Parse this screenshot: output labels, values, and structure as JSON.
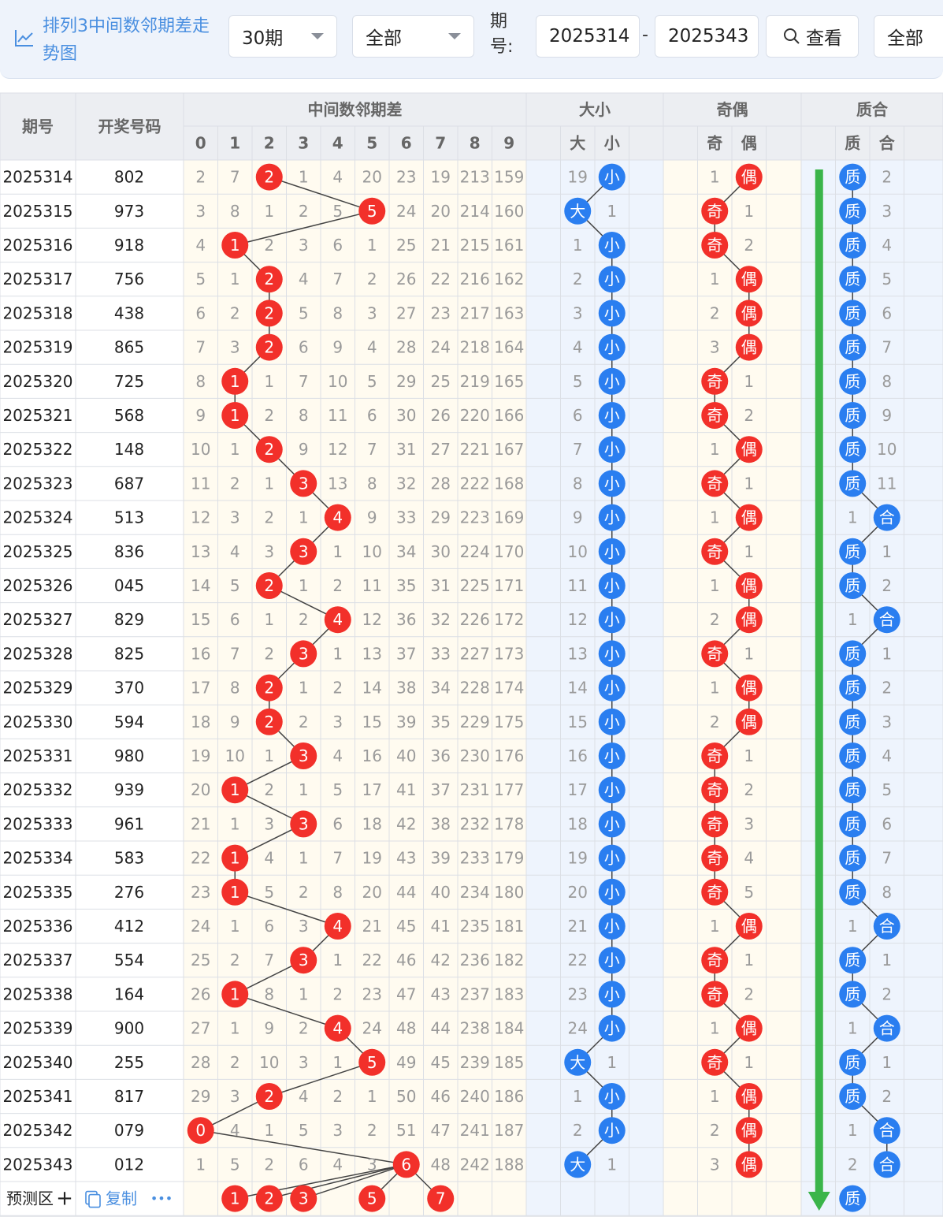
{
  "header": {
    "title": "排列3中间数邻期差走势图",
    "period_select": "30期",
    "filter_select": "全部",
    "issue_label": "期号:",
    "start_issue": "2025314",
    "separator": "-",
    "end_issue": "2025343",
    "view_button": "查看",
    "right_select": "全部"
  },
  "table": {
    "col_issue": "期号",
    "col_number": "开奖号码",
    "group_diff": "中间数邻期差",
    "group_size": "大小",
    "group_parity": "奇偶",
    "group_prime": "质合",
    "digits": [
      "0",
      "1",
      "2",
      "3",
      "4",
      "5",
      "6",
      "7",
      "8",
      "9"
    ],
    "size_labels": [
      "大",
      "小"
    ],
    "parity_labels": [
      "奇",
      "偶"
    ],
    "prime_labels": [
      "质",
      "合"
    ],
    "rows": [
      {
        "issue": "2025314",
        "number": "802",
        "diff": [
          2,
          7,
          "2",
          1,
          4,
          20,
          23,
          19,
          213,
          159
        ],
        "size": [
          19,
          "小"
        ],
        "parity": [
          1,
          "偶"
        ],
        "prime": [
          "质",
          2
        ]
      },
      {
        "issue": "2025315",
        "number": "973",
        "diff": [
          3,
          8,
          1,
          2,
          5,
          "5",
          24,
          20,
          214,
          160
        ],
        "size": [
          "大",
          1
        ],
        "parity": [
          "奇",
          1
        ],
        "prime": [
          "质",
          3
        ]
      },
      {
        "issue": "2025316",
        "number": "918",
        "diff": [
          4,
          "1",
          2,
          3,
          6,
          1,
          25,
          21,
          215,
          161
        ],
        "size": [
          1,
          "小"
        ],
        "parity": [
          "奇",
          2
        ],
        "prime": [
          "质",
          4
        ]
      },
      {
        "issue": "2025317",
        "number": "756",
        "diff": [
          5,
          1,
          "2",
          4,
          7,
          2,
          26,
          22,
          216,
          162
        ],
        "size": [
          2,
          "小"
        ],
        "parity": [
          1,
          "偶"
        ],
        "prime": [
          "质",
          5
        ]
      },
      {
        "issue": "2025318",
        "number": "438",
        "diff": [
          6,
          2,
          "2",
          5,
          8,
          3,
          27,
          23,
          217,
          163
        ],
        "size": [
          3,
          "小"
        ],
        "parity": [
          2,
          "偶"
        ],
        "prime": [
          "质",
          6
        ]
      },
      {
        "issue": "2025319",
        "number": "865",
        "diff": [
          7,
          3,
          "2",
          6,
          9,
          4,
          28,
          24,
          218,
          164
        ],
        "size": [
          4,
          "小"
        ],
        "parity": [
          3,
          "偶"
        ],
        "prime": [
          "质",
          7
        ]
      },
      {
        "issue": "2025320",
        "number": "725",
        "diff": [
          8,
          "1",
          1,
          7,
          10,
          5,
          29,
          25,
          219,
          165
        ],
        "size": [
          5,
          "小"
        ],
        "parity": [
          "奇",
          1
        ],
        "prime": [
          "质",
          8
        ]
      },
      {
        "issue": "2025321",
        "number": "568",
        "diff": [
          9,
          "1",
          2,
          8,
          11,
          6,
          30,
          26,
          220,
          166
        ],
        "size": [
          6,
          "小"
        ],
        "parity": [
          "奇",
          2
        ],
        "prime": [
          "质",
          9
        ]
      },
      {
        "issue": "2025322",
        "number": "148",
        "diff": [
          10,
          1,
          "2",
          9,
          12,
          7,
          31,
          27,
          221,
          167
        ],
        "size": [
          7,
          "小"
        ],
        "parity": [
          1,
          "偶"
        ],
        "prime": [
          "质",
          10
        ]
      },
      {
        "issue": "2025323",
        "number": "687",
        "diff": [
          11,
          2,
          1,
          "3",
          13,
          8,
          32,
          28,
          222,
          168
        ],
        "size": [
          8,
          "小"
        ],
        "parity": [
          "奇",
          1
        ],
        "prime": [
          "质",
          11
        ]
      },
      {
        "issue": "2025324",
        "number": "513",
        "diff": [
          12,
          3,
          2,
          1,
          "4",
          9,
          33,
          29,
          223,
          169
        ],
        "size": [
          9,
          "小"
        ],
        "parity": [
          1,
          "偶"
        ],
        "prime": [
          1,
          "合"
        ]
      },
      {
        "issue": "2025325",
        "number": "836",
        "diff": [
          13,
          4,
          3,
          "3",
          1,
          10,
          34,
          30,
          224,
          170
        ],
        "size": [
          10,
          "小"
        ],
        "parity": [
          "奇",
          1
        ],
        "prime": [
          "质",
          1
        ]
      },
      {
        "issue": "2025326",
        "number": "045",
        "diff": [
          14,
          5,
          "2",
          1,
          2,
          11,
          35,
          31,
          225,
          171
        ],
        "size": [
          11,
          "小"
        ],
        "parity": [
          1,
          "偶"
        ],
        "prime": [
          "质",
          2
        ]
      },
      {
        "issue": "2025327",
        "number": "829",
        "diff": [
          15,
          6,
          1,
          2,
          "4",
          12,
          36,
          32,
          226,
          172
        ],
        "size": [
          12,
          "小"
        ],
        "parity": [
          2,
          "偶"
        ],
        "prime": [
          1,
          "合"
        ]
      },
      {
        "issue": "2025328",
        "number": "825",
        "diff": [
          16,
          7,
          2,
          "3",
          1,
          13,
          37,
          33,
          227,
          173
        ],
        "size": [
          13,
          "小"
        ],
        "parity": [
          "奇",
          1
        ],
        "prime": [
          "质",
          1
        ]
      },
      {
        "issue": "2025329",
        "number": "370",
        "diff": [
          17,
          8,
          "2",
          1,
          2,
          14,
          38,
          34,
          228,
          174
        ],
        "size": [
          14,
          "小"
        ],
        "parity": [
          1,
          "偶"
        ],
        "prime": [
          "质",
          2
        ]
      },
      {
        "issue": "2025330",
        "number": "594",
        "diff": [
          18,
          9,
          "2",
          2,
          3,
          15,
          39,
          35,
          229,
          175
        ],
        "size": [
          15,
          "小"
        ],
        "parity": [
          2,
          "偶"
        ],
        "prime": [
          "质",
          3
        ]
      },
      {
        "issue": "2025331",
        "number": "980",
        "diff": [
          19,
          10,
          1,
          "3",
          4,
          16,
          40,
          36,
          230,
          176
        ],
        "size": [
          16,
          "小"
        ],
        "parity": [
          "奇",
          1
        ],
        "prime": [
          "质",
          4
        ]
      },
      {
        "issue": "2025332",
        "number": "939",
        "diff": [
          20,
          "1",
          2,
          1,
          5,
          17,
          41,
          37,
          231,
          177
        ],
        "size": [
          17,
          "小"
        ],
        "parity": [
          "奇",
          2
        ],
        "prime": [
          "质",
          5
        ]
      },
      {
        "issue": "2025333",
        "number": "961",
        "diff": [
          21,
          1,
          3,
          "3",
          6,
          18,
          42,
          38,
          232,
          178
        ],
        "size": [
          18,
          "小"
        ],
        "parity": [
          "奇",
          3
        ],
        "prime": [
          "质",
          6
        ]
      },
      {
        "issue": "2025334",
        "number": "583",
        "diff": [
          22,
          "1",
          4,
          1,
          7,
          19,
          43,
          39,
          233,
          179
        ],
        "size": [
          19,
          "小"
        ],
        "parity": [
          "奇",
          4
        ],
        "prime": [
          "质",
          7
        ]
      },
      {
        "issue": "2025335",
        "number": "276",
        "diff": [
          23,
          "1",
          5,
          2,
          8,
          20,
          44,
          40,
          234,
          180
        ],
        "size": [
          20,
          "小"
        ],
        "parity": [
          "奇",
          5
        ],
        "prime": [
          "质",
          8
        ]
      },
      {
        "issue": "2025336",
        "number": "412",
        "diff": [
          24,
          1,
          6,
          3,
          "4",
          21,
          45,
          41,
          235,
          181
        ],
        "size": [
          21,
          "小"
        ],
        "parity": [
          1,
          "偶"
        ],
        "prime": [
          1,
          "合"
        ]
      },
      {
        "issue": "2025337",
        "number": "554",
        "diff": [
          25,
          2,
          7,
          "3",
          1,
          22,
          46,
          42,
          236,
          182
        ],
        "size": [
          22,
          "小"
        ],
        "parity": [
          "奇",
          1
        ],
        "prime": [
          "质",
          1
        ]
      },
      {
        "issue": "2025338",
        "number": "164",
        "diff": [
          26,
          "1",
          8,
          1,
          2,
          23,
          47,
          43,
          237,
          183
        ],
        "size": [
          23,
          "小"
        ],
        "parity": [
          "奇",
          2
        ],
        "prime": [
          "质",
          2
        ]
      },
      {
        "issue": "2025339",
        "number": "900",
        "diff": [
          27,
          1,
          9,
          2,
          "4",
          24,
          48,
          44,
          238,
          184
        ],
        "size": [
          24,
          "小"
        ],
        "parity": [
          1,
          "偶"
        ],
        "prime": [
          1,
          "合"
        ]
      },
      {
        "issue": "2025340",
        "number": "255",
        "diff": [
          28,
          2,
          10,
          3,
          1,
          "5",
          49,
          45,
          239,
          185
        ],
        "size": [
          "大",
          1
        ],
        "parity": [
          "奇",
          1
        ],
        "prime": [
          "质",
          1
        ]
      },
      {
        "issue": "2025341",
        "number": "817",
        "diff": [
          29,
          3,
          "2",
          4,
          2,
          1,
          50,
          46,
          240,
          186
        ],
        "size": [
          1,
          "小"
        ],
        "parity": [
          1,
          "偶"
        ],
        "prime": [
          "质",
          2
        ]
      },
      {
        "issue": "2025342",
        "number": "079",
        "diff": [
          "0",
          4,
          1,
          5,
          3,
          2,
          51,
          47,
          241,
          187
        ],
        "size": [
          2,
          "小"
        ],
        "parity": [
          2,
          "偶"
        ],
        "prime": [
          1,
          "合"
        ]
      },
      {
        "issue": "2025343",
        "number": "012",
        "diff": [
          1,
          5,
          2,
          6,
          4,
          3,
          "6",
          48,
          242,
          188
        ],
        "size": [
          "大",
          1
        ],
        "parity": [
          3,
          "偶"
        ],
        "prime": [
          2,
          "合"
        ]
      }
    ],
    "predict": {
      "label": "预测区",
      "plus": "+",
      "copy": "复制",
      "more": "•••",
      "diff_picks": [
        "1",
        "2",
        "3",
        "5",
        "7"
      ],
      "prime_pick": "质"
    }
  },
  "colors": {
    "red_ball": "#f2302a",
    "blue_ball": "#2a7ef0",
    "arrow": "#3bb54a",
    "accent": "#4a8fe0",
    "miss_text": "#9a9a9a"
  }
}
